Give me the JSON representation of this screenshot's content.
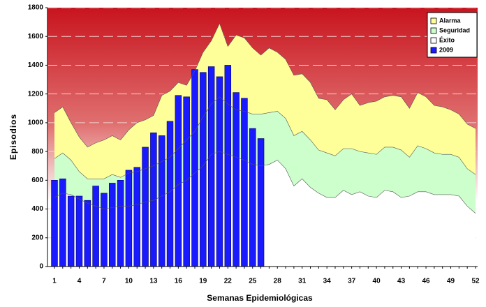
{
  "chart_data": {
    "type": "epidemic-channel",
    "y_label": "Episodios",
    "x_label": "Semanas Epidemiológicas",
    "categories": [
      1,
      null,
      null,
      4,
      null,
      null,
      7,
      null,
      null,
      10,
      null,
      null,
      13,
      null,
      null,
      16,
      null,
      null,
      19,
      null,
      null,
      22,
      null,
      null,
      25,
      null,
      null,
      28,
      null,
      null,
      31,
      null,
      null,
      34,
      null,
      null,
      37,
      null,
      null,
      40,
      null,
      null,
      43,
      null,
      null,
      46,
      null,
      null,
      49,
      null,
      null,
      52
    ],
    "ylim": [
      0,
      1800
    ],
    "yticks": [
      0,
      200,
      400,
      600,
      800,
      1000,
      1200,
      1400,
      1600,
      1800
    ],
    "grid": true,
    "legend": "top-right",
    "series": [
      {
        "name": "Alarma",
        "color": "#ffff99",
        "stack": true,
        "values": [
          320,
          320,
          260,
          240,
          220,
          250,
          270,
          270,
          260,
          300,
          340,
          340,
          350,
          460,
          460,
          460,
          380,
          420,
          450,
          440,
          510,
          400,
          520,
          510,
          460,
          410,
          450,
          410,
          410,
          420,
          400,
          400,
          360,
          370,
          320,
          340,
          380,
          320,
          350,
          370,
          350,
          360,
          370,
          340,
          370,
          360,
          330,
          330,
          310,
          300,
          310,
          320
        ]
      },
      {
        "name": "Seguridad",
        "color": "#ccffcc",
        "stack": true,
        "values": [
          270,
          280,
          240,
          190,
          170,
          190,
          210,
          230,
          200,
          230,
          230,
          230,
          240,
          240,
          240,
          250,
          280,
          290,
          340,
          350,
          380,
          350,
          330,
          340,
          350,
          360,
          360,
          340,
          350,
          350,
          330,
          330,
          300,
          310,
          290,
          290,
          320,
          280,
          300,
          300,
          300,
          310,
          330,
          270,
          320,
          300,
          290,
          280,
          280,
          270,
          260,
          270
        ]
      },
      {
        "name": "Éxito",
        "color": "#ffffff",
        "stack": true,
        "values": [
          480,
          510,
          500,
          470,
          440,
          420,
          400,
          410,
          420,
          420,
          430,
          450,
          460,
          490,
          520,
          570,
          600,
          650,
          700,
          780,
          800,
          780,
          760,
          740,
          710,
          700,
          710,
          740,
          680,
          560,
          610,
          550,
          510,
          480,
          480,
          530,
          500,
          520,
          490,
          480,
          530,
          520,
          480,
          490,
          520,
          520,
          500,
          500,
          500,
          490,
          420,
          370
        ]
      },
      {
        "name": "2009",
        "color": "#1a1aff",
        "stack": false,
        "values": [
          600,
          610,
          490,
          490,
          460,
          560,
          510,
          580,
          600,
          670,
          690,
          830,
          930,
          910,
          1010,
          1190,
          1180,
          1370,
          1350,
          1390,
          1320,
          1400,
          1210,
          1170,
          960,
          890,
          null,
          null,
          null,
          null,
          null,
          null,
          null,
          null,
          null,
          null,
          null,
          null,
          null,
          null,
          null,
          null,
          null,
          null,
          null,
          null,
          null,
          null,
          null,
          null,
          null,
          null
        ]
      }
    ]
  }
}
